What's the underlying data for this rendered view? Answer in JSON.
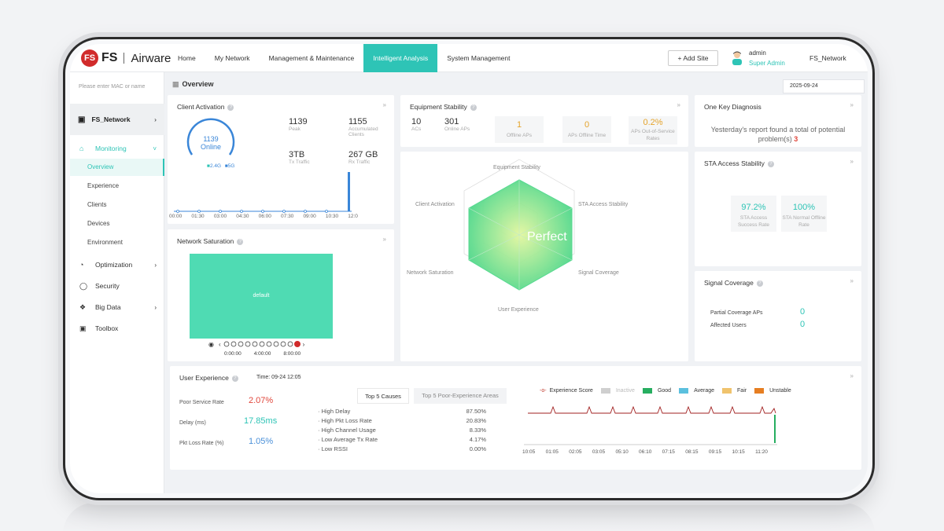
{
  "brand": {
    "logo_mark": "FS",
    "logo_fs": "FS",
    "product": "Airware"
  },
  "nav": {
    "items": [
      "Home",
      "My Network",
      "Management & Maintenance",
      "Intelligent Analysis",
      "System Management"
    ],
    "active_index": 3,
    "add_site": "+ Add Site",
    "user_name": "admin",
    "user_role": "Super Admin",
    "network": "FS_Network"
  },
  "sidebar": {
    "search_placeholder": "Please enter MAC or name",
    "network_name": "FS_Network",
    "groups": [
      {
        "label": "Monitoring",
        "icon": "monitor-icon"
      },
      {
        "label": "Optimization",
        "icon": "optimization-icon"
      },
      {
        "label": "Security",
        "icon": "security-icon"
      },
      {
        "label": "Big Data",
        "icon": "big-data-icon"
      },
      {
        "label": "Toolbox",
        "icon": "toolbox-icon"
      }
    ],
    "sub_items": [
      "Overview",
      "Experience",
      "Clients",
      "Devices",
      "Environment"
    ]
  },
  "page": {
    "title": "Overview",
    "date": "2025-09-24"
  },
  "client_activation": {
    "title": "Client Activation",
    "gauge_value": "1139",
    "gauge_label": "Online",
    "legend_24": "2.4G",
    "legend_5": "5G",
    "peak_value": "1139",
    "peak_label": "Peak",
    "accum_value": "1155",
    "accum_label": "Accumulated Clients",
    "tx_value": "3TB",
    "tx_label": "Tx Traffic",
    "rx_value": "267 GB",
    "rx_label": "Rx Traffic",
    "x_ticks": [
      "00:00",
      "01:30",
      "03:00",
      "04:30",
      "06:00",
      "07:30",
      "09:00",
      "10:30",
      "12:0"
    ]
  },
  "equipment_stability": {
    "title": "Equipment Stability",
    "acs_value": "10",
    "acs_label": "ACs",
    "aps_value": "301",
    "aps_label": "Online APs",
    "tiles": [
      {
        "value": "1",
        "label": "Offline APs"
      },
      {
        "value": "0",
        "label": "APs Offline Time"
      },
      {
        "value": "0.2%",
        "label": "APs Out-of-Service Rates"
      }
    ]
  },
  "one_key": {
    "title": "One Key Diagnosis",
    "text": "Yesterday's report found a total of potential problem(s)",
    "count": "3"
  },
  "sta_access": {
    "title": "STA Access Stability",
    "tiles": [
      {
        "value": "97.2%",
        "label": "STA Access Success Rate"
      },
      {
        "value": "100%",
        "label": "STA Normal Offline Rate"
      }
    ]
  },
  "network_saturation": {
    "title": "Network Saturation",
    "heat_label": "default",
    "times": [
      "0:00:00",
      "4:00:00",
      "8:00:00"
    ]
  },
  "radar": {
    "center_label": "Perfect",
    "axes": [
      "Equipment Stability",
      "STA Access Stability",
      "Signal Coverage",
      "User Experience",
      "Network Saturation",
      "Client Activation"
    ]
  },
  "signal_coverage": {
    "title": "Signal Coverage",
    "rows": [
      {
        "label": "Partial Coverage APs",
        "value": "0"
      },
      {
        "label": "Affected Users",
        "value": "0"
      }
    ]
  },
  "user_experience": {
    "title": "User Experience",
    "time": "Time: 09-24 12:05",
    "metrics": [
      {
        "label": "Poor Service Rate",
        "value": "2.07%",
        "color": "#e0453a"
      },
      {
        "label": "Delay (ms)",
        "value": "17.85ms",
        "color": "#2ec4b6"
      },
      {
        "label": "Pkt Loss Rate (%)",
        "value": "1.05%",
        "color": "#4a90d9"
      }
    ],
    "tabs": [
      "Top 5 Causes",
      "Top 5 Poor-Experience Areas"
    ],
    "causes": [
      {
        "label": "High Delay",
        "value": "87.50%"
      },
      {
        "label": "High Pkt Loss Rate",
        "value": "20.83%"
      },
      {
        "label": "High Channel Usage",
        "value": "8.33%"
      },
      {
        "label": "Low Average Tx Rate",
        "value": "4.17%"
      },
      {
        "label": "Low RSSI",
        "value": "0.00%"
      }
    ],
    "legend": [
      {
        "label": "Experience Score",
        "color": "#c0392b"
      },
      {
        "label": "Inactive",
        "color": "#cfcfcf"
      },
      {
        "label": "Good",
        "color": "#27ae60"
      },
      {
        "label": "Average",
        "color": "#5bc0de"
      },
      {
        "label": "Fair",
        "color": "#f0c36d"
      },
      {
        "label": "Unstable",
        "color": "#e67e22"
      }
    ],
    "x_ticks": [
      "10:05",
      "01:05",
      "02:05",
      "03:05",
      "05:10",
      "06:10",
      "07:15",
      "08:15",
      "09:15",
      "10:15",
      "11:20"
    ]
  },
  "colors": {
    "accent": "#2ec4b6",
    "brand_red": "#d12b2b",
    "heat": "#4fdbb3",
    "radar": "#5ee29a"
  }
}
